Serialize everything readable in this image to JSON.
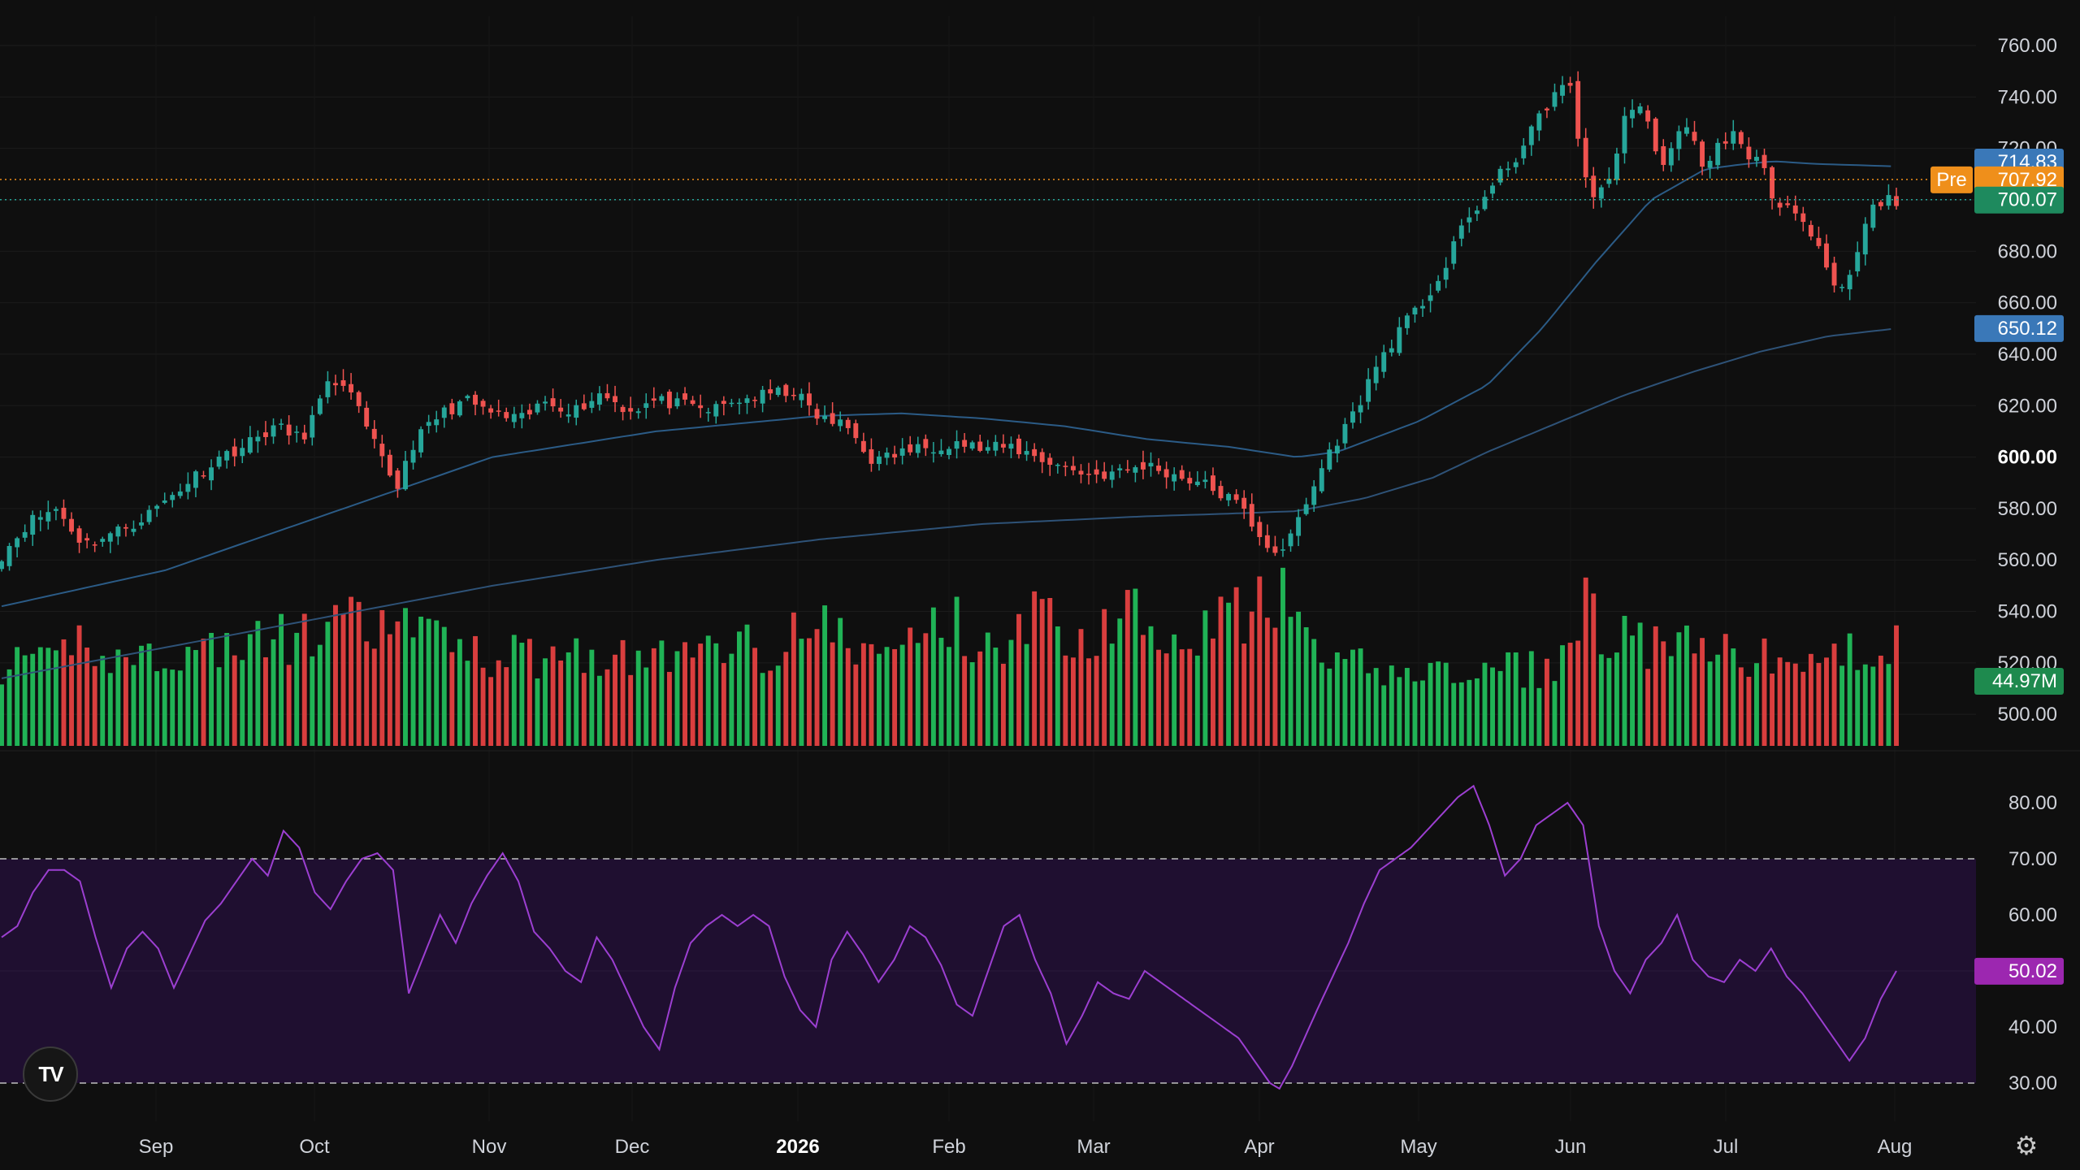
{
  "chart_data": [
    {
      "type": "candlestick",
      "title": "",
      "y_ticks": [
        "760.00",
        "740.00",
        "720.00",
        "700.00",
        "680.00",
        "660.00",
        "640.00",
        "620.00",
        "600.00",
        "580.00",
        "560.00",
        "540.00",
        "520.00",
        "500.00"
      ],
      "y_bold_tick": "600.00",
      "ylim": [
        484,
        770
      ],
      "x_ticks": [
        "Sep",
        "Oct",
        "Nov",
        "Dec",
        "2026",
        "Feb",
        "Mar",
        "Apr",
        "May",
        "Jun",
        "Jul",
        "Aug"
      ],
      "x_bold_tick": "2026",
      "n_bars": 245,
      "close_anchors": [
        [
          0,
          562
        ],
        [
          10,
          575
        ],
        [
          20,
          580
        ],
        [
          30,
          566
        ],
        [
          40,
          570
        ],
        [
          50,
          575
        ],
        [
          60,
          583
        ],
        [
          70,
          592
        ],
        [
          80,
          600
        ],
        [
          90,
          605
        ],
        [
          100,
          612
        ],
        [
          110,
          607
        ],
        [
          120,
          628
        ],
        [
          125,
          630
        ],
        [
          130,
          620
        ],
        [
          135,
          608
        ],
        [
          140,
          598
        ],
        [
          145,
          588
        ],
        [
          150,
          604
        ],
        [
          160,
          616
        ],
        [
          170,
          622
        ],
        [
          180,
          617
        ],
        [
          190,
          614
        ],
        [
          200,
          622
        ],
        [
          210,
          618
        ],
        [
          220,
          625
        ],
        [
          230,
          618
        ],
        [
          240,
          622
        ],
        [
          250,
          620
        ],
        [
          260,
          618
        ],
        [
          270,
          622
        ],
        [
          280,
          624
        ],
        [
          290,
          626
        ],
        [
          300,
          615
        ],
        [
          310,
          612
        ],
        [
          320,
          598
        ],
        [
          330,
          602
        ],
        [
          340,
          604
        ],
        [
          350,
          606
        ],
        [
          360,
          603
        ],
        [
          370,
          604
        ],
        [
          380,
          600
        ],
        [
          390,
          596
        ],
        [
          400,
          593
        ],
        [
          410,
          594
        ],
        [
          420,
          597
        ],
        [
          430,
          593
        ],
        [
          440,
          590
        ],
        [
          450,
          584
        ],
        [
          455,
          580
        ],
        [
          460,
          572
        ],
        [
          465,
          565
        ],
        [
          470,
          562
        ],
        [
          475,
          575
        ],
        [
          480,
          585
        ],
        [
          485,
          598
        ],
        [
          490,
          607
        ],
        [
          495,
          615
        ],
        [
          500,
          626
        ],
        [
          505,
          637
        ],
        [
          510,
          645
        ],
        [
          515,
          652
        ],
        [
          520,
          658
        ],
        [
          525,
          666
        ],
        [
          530,
          674
        ],
        [
          535,
          688
        ],
        [
          540,
          696
        ],
        [
          545,
          702
        ],
        [
          550,
          710
        ],
        [
          555,
          716
        ],
        [
          560,
          724
        ],
        [
          565,
          734
        ],
        [
          570,
          742
        ],
        [
          575,
          745
        ],
        [
          580,
          712
        ],
        [
          585,
          700
        ],
        [
          590,
          708
        ],
        [
          595,
          732
        ],
        [
          600,
          738
        ],
        [
          605,
          726
        ],
        [
          610,
          712
        ],
        [
          615,
          725
        ],
        [
          620,
          728
        ],
        [
          625,
          710
        ],
        [
          630,
          722
        ],
        [
          635,
          726
        ],
        [
          640,
          716
        ],
        [
          645,
          718
        ],
        [
          650,
          700
        ],
        [
          655,
          698
        ],
        [
          660,
          690
        ],
        [
          665,
          684
        ],
        [
          670,
          670
        ],
        [
          675,
          664
        ],
        [
          680,
          676
        ],
        [
          685,
          695
        ],
        [
          690,
          700
        ],
        [
          695,
          700
        ]
      ],
      "current_price": "700.07",
      "premarket_label": "Pre",
      "premarket_price": "707.92",
      "ma_short_value": "714.83",
      "ma_long_value": "650.12",
      "ma_short_anchors": [
        [
          0,
          542
        ],
        [
          60,
          556
        ],
        [
          120,
          578
        ],
        [
          180,
          600
        ],
        [
          240,
          610
        ],
        [
          300,
          616
        ],
        [
          330,
          617
        ],
        [
          360,
          615
        ],
        [
          390,
          612
        ],
        [
          420,
          607
        ],
        [
          450,
          604
        ],
        [
          475,
          600
        ],
        [
          490,
          602
        ],
        [
          520,
          614
        ],
        [
          545,
          628
        ],
        [
          565,
          650
        ],
        [
          585,
          676
        ],
        [
          605,
          700
        ],
        [
          625,
          712
        ],
        [
          640,
          714
        ],
        [
          650,
          715
        ],
        [
          665,
          714
        ],
        [
          695,
          713
        ]
      ],
      "ma_long_anchors": [
        [
          0,
          514
        ],
        [
          60,
          526
        ],
        [
          120,
          538
        ],
        [
          180,
          550
        ],
        [
          240,
          560
        ],
        [
          300,
          568
        ],
        [
          360,
          574
        ],
        [
          420,
          577
        ],
        [
          450,
          578
        ],
        [
          475,
          579
        ],
        [
          500,
          584
        ],
        [
          525,
          592
        ],
        [
          545,
          602
        ],
        [
          570,
          613
        ],
        [
          595,
          624
        ],
        [
          620,
          633
        ],
        [
          645,
          641
        ],
        [
          670,
          647
        ],
        [
          695,
          650
        ]
      ],
      "colors": {
        "up": "#26a69a",
        "down": "#ef5350",
        "ma_short": "#2b5b86",
        "ma_long": "#2e5277",
        "current": "#1e8a5e",
        "premarket": "#ef8f1b",
        "ma_short_label": "#3a78b8",
        "ma_long_label": "#3a78b8"
      }
    },
    {
      "type": "bar",
      "name": "Volume",
      "value_label": "44.97M",
      "values_note_in_million": true,
      "volume_anchors": [
        [
          0,
          42
        ],
        [
          10,
          40
        ],
        [
          20,
          42
        ],
        [
          30,
          58
        ],
        [
          40,
          44
        ],
        [
          50,
          46
        ],
        [
          60,
          48
        ],
        [
          70,
          46
        ],
        [
          80,
          52
        ],
        [
          90,
          50
        ],
        [
          100,
          56
        ],
        [
          110,
          54
        ],
        [
          120,
          60
        ],
        [
          130,
          62
        ],
        [
          140,
          58
        ],
        [
          150,
          64
        ],
        [
          160,
          52
        ],
        [
          170,
          56
        ],
        [
          180,
          44
        ],
        [
          190,
          48
        ],
        [
          200,
          44
        ],
        [
          210,
          50
        ],
        [
          220,
          46
        ],
        [
          230,
          44
        ],
        [
          240,
          48
        ],
        [
          250,
          42
        ],
        [
          260,
          56
        ],
        [
          270,
          54
        ],
        [
          280,
          48
        ],
        [
          290,
          60
        ],
        [
          300,
          62
        ],
        [
          310,
          52
        ],
        [
          320,
          46
        ],
        [
          330,
          50
        ],
        [
          340,
          64
        ],
        [
          350,
          62
        ],
        [
          360,
          48
        ],
        [
          370,
          58
        ],
        [
          380,
          66
        ],
        [
          390,
          60
        ],
        [
          400,
          52
        ],
        [
          410,
          72
        ],
        [
          420,
          68
        ],
        [
          430,
          60
        ],
        [
          440,
          58
        ],
        [
          450,
          74
        ],
        [
          455,
          62
        ],
        [
          460,
          70
        ],
        [
          470,
          74
        ],
        [
          480,
          48
        ],
        [
          490,
          42
        ],
        [
          500,
          40
        ],
        [
          510,
          38
        ],
        [
          520,
          40
        ],
        [
          530,
          36
        ],
        [
          540,
          38
        ],
        [
          550,
          38
        ],
        [
          560,
          40
        ],
        [
          570,
          38
        ],
        [
          575,
          52
        ],
        [
          580,
          74
        ],
        [
          585,
          64
        ],
        [
          590,
          56
        ],
        [
          600,
          52
        ],
        [
          610,
          50
        ],
        [
          620,
          50
        ],
        [
          630,
          46
        ],
        [
          640,
          46
        ],
        [
          650,
          44
        ],
        [
          660,
          42
        ],
        [
          670,
          44
        ],
        [
          680,
          48
        ],
        [
          690,
          56
        ],
        [
          695,
          50
        ]
      ],
      "colors": {
        "up": "#22c55e",
        "down": "#ef4444"
      }
    },
    {
      "type": "line",
      "name": "RSI",
      "value_label": "50.02",
      "y_ticks": [
        "80.00",
        "70.00",
        "60.00",
        "50.00",
        "40.00",
        "30.00"
      ],
      "ylim": [
        26,
        86
      ],
      "band": [
        30,
        70
      ],
      "rsi_anchors": [
        [
          0,
          56
        ],
        [
          5,
          58
        ],
        [
          10,
          64
        ],
        [
          15,
          68
        ],
        [
          20,
          68
        ],
        [
          25,
          66
        ],
        [
          30,
          56
        ],
        [
          35,
          47
        ],
        [
          40,
          54
        ],
        [
          45,
          57
        ],
        [
          50,
          54
        ],
        [
          55,
          47
        ],
        [
          60,
          53
        ],
        [
          65,
          59
        ],
        [
          70,
          62
        ],
        [
          75,
          66
        ],
        [
          80,
          70
        ],
        [
          85,
          67
        ],
        [
          90,
          75
        ],
        [
          95,
          72
        ],
        [
          100,
          64
        ],
        [
          105,
          61
        ],
        [
          110,
          66
        ],
        [
          115,
          70
        ],
        [
          120,
          71
        ],
        [
          125,
          68
        ],
        [
          130,
          46
        ],
        [
          135,
          53
        ],
        [
          140,
          60
        ],
        [
          145,
          55
        ],
        [
          150,
          62
        ],
        [
          155,
          67
        ],
        [
          160,
          71
        ],
        [
          165,
          66
        ],
        [
          170,
          57
        ],
        [
          175,
          54
        ],
        [
          180,
          50
        ],
        [
          185,
          48
        ],
        [
          190,
          56
        ],
        [
          195,
          52
        ],
        [
          200,
          46
        ],
        [
          205,
          40
        ],
        [
          210,
          36
        ],
        [
          215,
          47
        ],
        [
          220,
          55
        ],
        [
          225,
          58
        ],
        [
          230,
          60
        ],
        [
          235,
          58
        ],
        [
          240,
          60
        ],
        [
          245,
          58
        ],
        [
          250,
          49
        ],
        [
          255,
          43
        ],
        [
          260,
          40
        ],
        [
          265,
          52
        ],
        [
          270,
          57
        ],
        [
          275,
          53
        ],
        [
          280,
          48
        ],
        [
          285,
          52
        ],
        [
          290,
          58
        ],
        [
          295,
          56
        ],
        [
          300,
          51
        ],
        [
          305,
          44
        ],
        [
          310,
          42
        ],
        [
          315,
          50
        ],
        [
          320,
          58
        ],
        [
          325,
          60
        ],
        [
          330,
          52
        ],
        [
          335,
          46
        ],
        [
          340,
          37
        ],
        [
          345,
          42
        ],
        [
          350,
          48
        ],
        [
          355,
          46
        ],
        [
          360,
          45
        ],
        [
          365,
          50
        ],
        [
          370,
          48
        ],
        [
          375,
          46
        ],
        [
          380,
          44
        ],
        [
          385,
          42
        ],
        [
          390,
          40
        ],
        [
          395,
          38
        ],
        [
          400,
          34
        ],
        [
          405,
          30
        ],
        [
          408,
          29
        ],
        [
          412,
          33
        ],
        [
          416,
          38
        ],
        [
          420,
          43
        ],
        [
          425,
          49
        ],
        [
          430,
          55
        ],
        [
          435,
          62
        ],
        [
          440,
          68
        ],
        [
          445,
          70
        ],
        [
          450,
          72
        ],
        [
          455,
          75
        ],
        [
          460,
          78
        ],
        [
          465,
          81
        ],
        [
          470,
          83
        ],
        [
          475,
          76
        ],
        [
          480,
          67
        ],
        [
          485,
          70
        ],
        [
          490,
          76
        ],
        [
          495,
          78
        ],
        [
          500,
          80
        ],
        [
          505,
          76
        ],
        [
          510,
          58
        ],
        [
          515,
          50
        ],
        [
          520,
          46
        ],
        [
          525,
          52
        ],
        [
          530,
          55
        ],
        [
          535,
          60
        ],
        [
          540,
          52
        ],
        [
          545,
          49
        ],
        [
          550,
          48
        ],
        [
          555,
          52
        ],
        [
          560,
          50
        ],
        [
          565,
          54
        ],
        [
          570,
          49
        ],
        [
          575,
          46
        ],
        [
          580,
          42
        ],
        [
          585,
          38
        ],
        [
          590,
          34
        ],
        [
          595,
          38
        ],
        [
          600,
          45
        ],
        [
          605,
          50
        ]
      ],
      "colors": {
        "line": "#9c3fd1",
        "band": "#1f0f30",
        "label": "#9c27b0"
      }
    }
  ]
}
